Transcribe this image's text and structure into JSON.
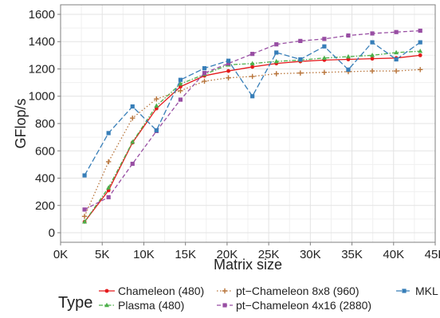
{
  "chart_data": {
    "type": "line",
    "xlabel": "Matrix size",
    "ylabel": "GFlop/s",
    "xlim": [
      0,
      45000
    ],
    "ylim": [
      -70,
      1670
    ],
    "x_ticks": [
      0,
      5000,
      10000,
      15000,
      20000,
      25000,
      30000,
      35000,
      40000,
      45000
    ],
    "x_tick_labels": [
      "0K",
      "5K",
      "10K",
      "15K",
      "20K",
      "25K",
      "30K",
      "35K",
      "40K",
      "45K"
    ],
    "y_ticks": [
      0,
      200,
      400,
      600,
      800,
      1000,
      1200,
      1400,
      1600
    ],
    "y_tick_labels": [
      "0",
      "200",
      "400",
      "600",
      "800",
      "1000",
      "1200",
      "1400",
      "1600"
    ],
    "grid": true,
    "legend": {
      "title": "Type",
      "placement": "bottom"
    },
    "x": [
      2880,
      5760,
      8640,
      11520,
      14400,
      17280,
      20160,
      23040,
      25920,
      28800,
      31680,
      34560,
      37440,
      40320,
      43200
    ],
    "series": [
      {
        "name": "Chameleon (480)",
        "color": "#e41a1c",
        "dash": "solid",
        "marker": "circle",
        "values": [
          80,
          310,
          660,
          910,
          1070,
          1150,
          1185,
          1215,
          1240,
          1255,
          1265,
          1270,
          1275,
          1280,
          1300
        ]
      },
      {
        "name": "Plasma (480)",
        "color": "#4daf4a",
        "dash": "dashdot",
        "marker": "triangle",
        "values": [
          80,
          330,
          665,
          930,
          1090,
          1160,
          1230,
          1240,
          1255,
          1265,
          1280,
          1290,
          1300,
          1320,
          1330
        ]
      },
      {
        "name": "pt−Chameleon 8x8 (960)",
        "color": "#b8743a",
        "dash": "dotted",
        "marker": "cross",
        "values": [
          120,
          520,
          840,
          980,
          1040,
          1110,
          1135,
          1145,
          1165,
          1170,
          1175,
          1180,
          1185,
          1185,
          1195
        ]
      },
      {
        "name": "pt−Chameleon 4x16 (2880)",
        "color": "#984ea3",
        "dash": "dashed",
        "marker": "square",
        "values": [
          170,
          260,
          505,
          745,
          975,
          1170,
          1240,
          1310,
          1380,
          1405,
          1420,
          1445,
          1460,
          1470,
          1480
        ]
      },
      {
        "name": "MKL",
        "color": "#377eb8",
        "dash": "longdash",
        "marker": "square",
        "values": [
          420,
          730,
          925,
          750,
          1120,
          1205,
          1260,
          1000,
          1320,
          1270,
          1365,
          1195,
          1395,
          1270,
          1395
        ]
      }
    ]
  }
}
